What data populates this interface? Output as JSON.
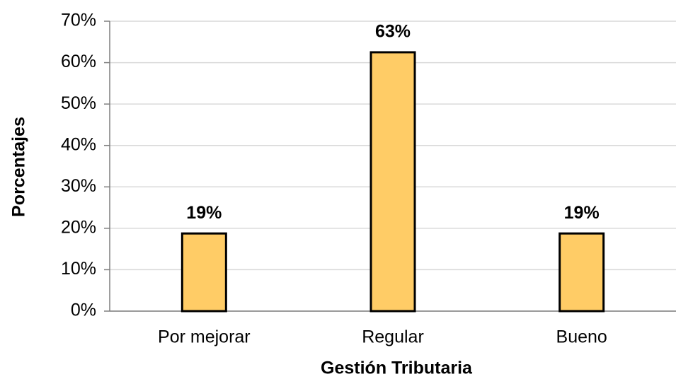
{
  "chart_data": {
    "type": "bar",
    "categories": [
      "Por mejorar",
      "Regular",
      "Bueno"
    ],
    "values": [
      18.75,
      62.5,
      18.75
    ],
    "value_labels": [
      "19%",
      "63%",
      "19%"
    ],
    "color": "#ffcc66",
    "xlabel": "Gestión Tributaria",
    "ylabel": "Porcentajes",
    "ylim": [
      0,
      70
    ],
    "yticks": [
      {
        "value": 0,
        "label": "0%"
      },
      {
        "value": 10,
        "label": "10%"
      },
      {
        "value": 20,
        "label": "20%"
      },
      {
        "value": 30,
        "label": "30%"
      },
      {
        "value": 40,
        "label": "40%"
      },
      {
        "value": 50,
        "label": "50%"
      },
      {
        "value": 60,
        "label": "60%"
      },
      {
        "value": 70,
        "label": "70%"
      }
    ],
    "grid": true
  }
}
